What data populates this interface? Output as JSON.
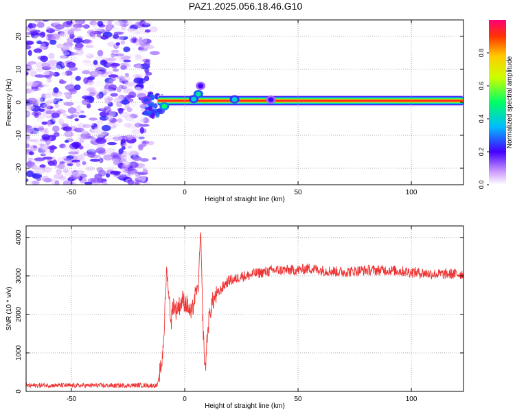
{
  "title": "PAZ1.2025.056.18.46.G10",
  "chart_data": [
    {
      "type": "heatmap",
      "xlabel": "Height of straight line (km)",
      "ylabel": "Frequency (Hz)",
      "xlim": [
        -70,
        123
      ],
      "ylim": [
        -25,
        25
      ],
      "xticks": [
        -50,
        0,
        50,
        100
      ],
      "yticks": [
        -20,
        -10,
        0,
        10,
        20
      ],
      "grid": true,
      "colorbar": {
        "label": "Normalized spectral amplitude",
        "ticks": [
          "0.0",
          "0.2",
          "0.4",
          "0.6",
          "0.8"
        ],
        "range": [
          0,
          1
        ]
      },
      "noise_region_x": [
        -70,
        -12
      ],
      "signal_line": {
        "frequency": 0.5,
        "x_start": -12,
        "x_end": 123
      },
      "features": [
        {
          "x": -17,
          "y": 0.6,
          "amplitude": 0.25
        },
        {
          "x": -9,
          "y": -1.2,
          "amplitude": 0.5
        },
        {
          "x": 4,
          "y": 1.0,
          "amplitude": 0.4
        },
        {
          "x": 6,
          "y": 2.5,
          "amplitude": 0.45
        },
        {
          "x": 7,
          "y": 5.0,
          "amplitude": 0.2
        },
        {
          "x": 22,
          "y": 0.9,
          "amplitude": 0.4
        },
        {
          "x": 38,
          "y": 0.8,
          "amplitude": 0.2
        }
      ]
    },
    {
      "type": "line",
      "xlabel": "Height of straight line (km)",
      "ylabel": "SNR (10 * v/v)",
      "xlim": [
        -70,
        123
      ],
      "ylim": [
        0,
        4300
      ],
      "xticks": [
        -50,
        0,
        50,
        100
      ],
      "yticks": [
        0,
        1000,
        2000,
        3000,
        4000
      ],
      "grid": true,
      "series": [
        {
          "color": "#ee3333",
          "x": [
            -70,
            -60,
            -50,
            -40,
            -30,
            -20,
            -12,
            -10,
            -9,
            -8,
            -7,
            -6,
            -5,
            -4,
            -3,
            -2,
            -1,
            0,
            1,
            2,
            3,
            4,
            5,
            6,
            7,
            8,
            9,
            10,
            11,
            12,
            14,
            16,
            18,
            20,
            22,
            25,
            28,
            30,
            35,
            40,
            45,
            50,
            55,
            60,
            70,
            80,
            90,
            100,
            110,
            123
          ],
          "values": [
            150,
            160,
            150,
            155,
            150,
            160,
            150,
            800,
            1700,
            3200,
            2500,
            1800,
            2300,
            2100,
            2200,
            2250,
            2400,
            2300,
            2250,
            2100,
            2000,
            2300,
            2600,
            2700,
            4200,
            1800,
            500,
            1500,
            2000,
            2300,
            2500,
            2650,
            2800,
            2900,
            2900,
            3000,
            3000,
            3050,
            3100,
            3150,
            3150,
            3150,
            3200,
            3150,
            3100,
            3150,
            3150,
            3100,
            3050,
            3050
          ]
        }
      ]
    }
  ]
}
